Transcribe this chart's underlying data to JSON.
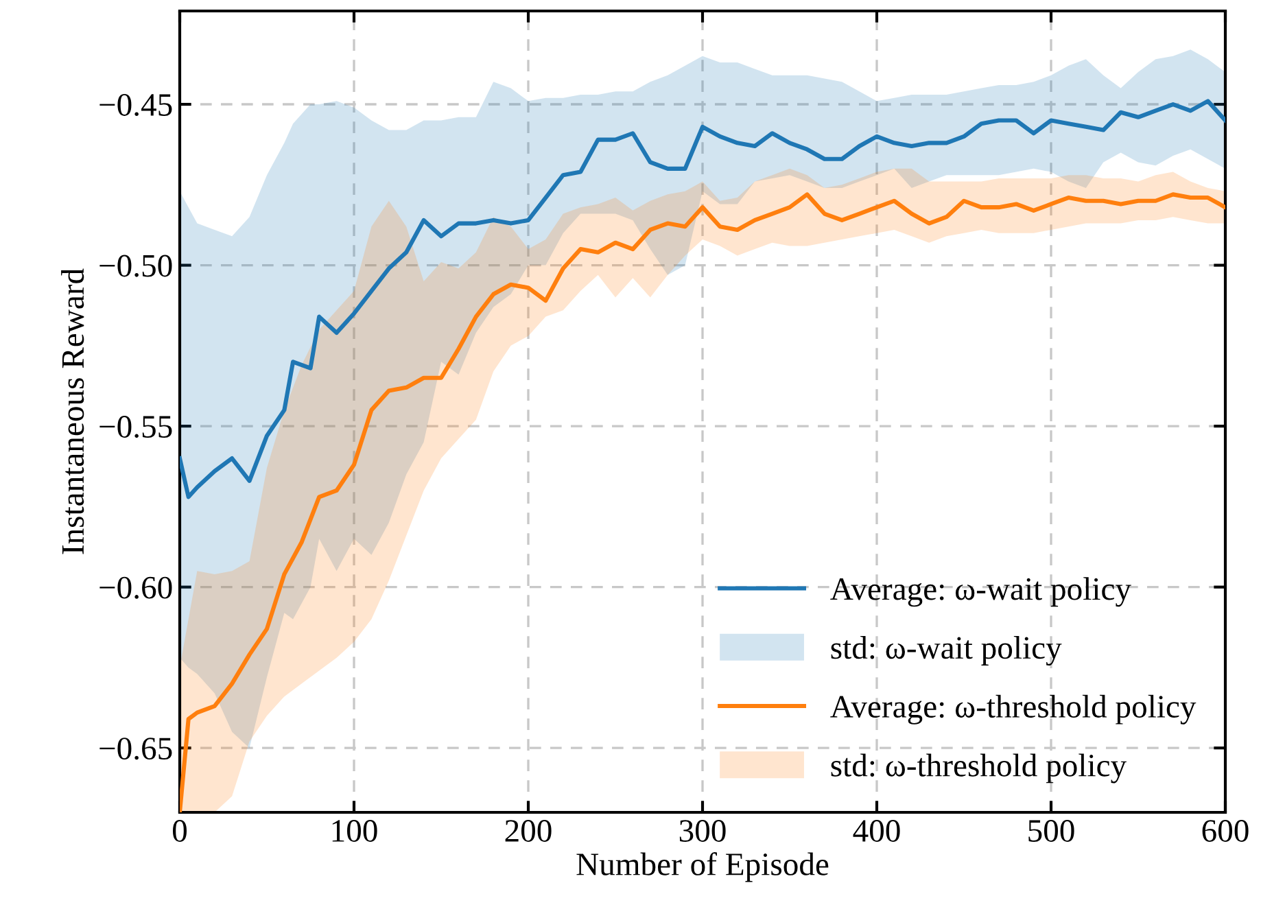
{
  "chart_data": {
    "type": "line",
    "xlabel": "Number of Episode",
    "ylabel": "Instantaneous Reward",
    "xlim": [
      0,
      600
    ],
    "xticks": [
      0,
      100,
      200,
      300,
      400,
      500,
      600
    ],
    "ylim": [
      -0.67,
      -0.421
    ],
    "yticks": [
      {
        "value": -0.65,
        "label": "−0.65"
      },
      {
        "value": -0.6,
        "label": "−0.60"
      },
      {
        "value": -0.55,
        "label": "−0.55"
      },
      {
        "value": -0.5,
        "label": "−0.50"
      },
      {
        "value": -0.45,
        "label": "−0.45"
      }
    ],
    "grid": true,
    "legend": "bottom right",
    "line_style": "solid",
    "marker": "none",
    "annotations": [
      "std: ω-wait policy",
      "std: ω-threshold policy"
    ],
    "series": [
      {
        "name": "Average: ω-wait policy",
        "color": "#1f77b4",
        "x": [
          0,
          5,
          10,
          20,
          30,
          40,
          50,
          60,
          65,
          75,
          80,
          90,
          100,
          110,
          120,
          130,
          140,
          150,
          160,
          170,
          180,
          190,
          200,
          210,
          220,
          230,
          240,
          250,
          260,
          270,
          280,
          290,
          300,
          310,
          320,
          330,
          340,
          350,
          360,
          370,
          380,
          390,
          400,
          410,
          420,
          430,
          440,
          450,
          460,
          470,
          480,
          490,
          500,
          510,
          520,
          530,
          540,
          550,
          560,
          570,
          580,
          590,
          600
        ],
        "values": [
          -0.56,
          -0.572,
          -0.569,
          -0.564,
          -0.56,
          -0.567,
          -0.553,
          -0.545,
          -0.53,
          -0.532,
          -0.516,
          -0.521,
          -0.515,
          -0.508,
          -0.501,
          -0.496,
          -0.486,
          -0.491,
          -0.487,
          -0.487,
          -0.486,
          -0.487,
          -0.486,
          -0.479,
          -0.472,
          -0.471,
          -0.461,
          -0.461,
          -0.459,
          -0.468,
          -0.47,
          -0.47,
          -0.457,
          -0.46,
          -0.462,
          -0.463,
          -0.459,
          -0.462,
          -0.464,
          -0.467,
          -0.467,
          -0.463,
          -0.46,
          -0.462,
          -0.463,
          -0.462,
          -0.462,
          -0.46,
          -0.456,
          -0.455,
          -0.455,
          -0.459,
          -0.455,
          -0.456,
          -0.457,
          -0.458,
          -0.4525,
          -0.454,
          -0.452,
          -0.45,
          -0.452,
          -0.449,
          -0.455
        ],
        "upper": [
          -0.477,
          -0.482,
          -0.487,
          -0.489,
          -0.491,
          -0.485,
          -0.472,
          -0.462,
          -0.456,
          -0.45,
          -0.45,
          -0.449,
          -0.451,
          -0.455,
          -0.458,
          -0.458,
          -0.455,
          -0.455,
          -0.454,
          -0.454,
          -0.443,
          -0.445,
          -0.449,
          -0.448,
          -0.448,
          -0.447,
          -0.447,
          -0.446,
          -0.446,
          -0.443,
          -0.441,
          -0.438,
          -0.435,
          -0.437,
          -0.437,
          -0.439,
          -0.441,
          -0.441,
          -0.441,
          -0.442,
          -0.443,
          -0.446,
          -0.449,
          -0.448,
          -0.447,
          -0.447,
          -0.447,
          -0.446,
          -0.445,
          -0.444,
          -0.444,
          -0.443,
          -0.441,
          -0.438,
          -0.436,
          -0.441,
          -0.445,
          -0.44,
          -0.436,
          -0.435,
          -0.433,
          -0.436,
          -0.44
        ],
        "lower": [
          -0.622,
          -0.625,
          -0.627,
          -0.633,
          -0.645,
          -0.65,
          -0.628,
          -0.608,
          -0.61,
          -0.6,
          -0.585,
          -0.595,
          -0.585,
          -0.59,
          -0.58,
          -0.565,
          -0.555,
          -0.53,
          -0.534,
          -0.521,
          -0.513,
          -0.509,
          -0.5,
          -0.5,
          -0.49,
          -0.484,
          -0.484,
          -0.484,
          -0.486,
          -0.495,
          -0.503,
          -0.5,
          -0.477,
          -0.481,
          -0.481,
          -0.474,
          -0.473,
          -0.472,
          -0.474,
          -0.476,
          -0.476,
          -0.474,
          -0.472,
          -0.47,
          -0.476,
          -0.474,
          -0.472,
          -0.472,
          -0.472,
          -0.472,
          -0.471,
          -0.47,
          -0.471,
          -0.474,
          -0.476,
          -0.468,
          -0.465,
          -0.468,
          -0.469,
          -0.466,
          -0.464,
          -0.467,
          -0.47
        ]
      },
      {
        "name": "Average: ω-threshold policy",
        "color": "#ff7f0e",
        "x": [
          0,
          5,
          10,
          20,
          30,
          40,
          50,
          60,
          70,
          80,
          90,
          100,
          110,
          120,
          130,
          140,
          150,
          160,
          170,
          180,
          190,
          200,
          210,
          220,
          230,
          240,
          250,
          260,
          270,
          280,
          290,
          300,
          310,
          320,
          330,
          340,
          350,
          360,
          370,
          380,
          390,
          400,
          410,
          420,
          430,
          440,
          450,
          460,
          470,
          480,
          490,
          500,
          510,
          520,
          530,
          540,
          550,
          560,
          570,
          580,
          590,
          600
        ],
        "values": [
          -0.67,
          -0.641,
          -0.639,
          -0.637,
          -0.63,
          -0.621,
          -0.613,
          -0.596,
          -0.586,
          -0.572,
          -0.57,
          -0.562,
          -0.545,
          -0.539,
          -0.538,
          -0.535,
          -0.535,
          -0.526,
          -0.516,
          -0.509,
          -0.506,
          -0.507,
          -0.511,
          -0.501,
          -0.495,
          -0.496,
          -0.493,
          -0.495,
          -0.489,
          -0.487,
          -0.488,
          -0.482,
          -0.488,
          -0.489,
          -0.486,
          -0.484,
          -0.482,
          -0.478,
          -0.484,
          -0.486,
          -0.484,
          -0.482,
          -0.48,
          -0.484,
          -0.487,
          -0.485,
          -0.48,
          -0.482,
          -0.482,
          -0.481,
          -0.483,
          -0.481,
          -0.479,
          -0.48,
          -0.48,
          -0.481,
          -0.48,
          -0.48,
          -0.478,
          -0.479,
          -0.479,
          -0.482
        ],
        "upper": [
          -0.625,
          -0.61,
          -0.595,
          -0.596,
          -0.595,
          -0.592,
          -0.563,
          -0.545,
          -0.531,
          -0.52,
          -0.514,
          -0.508,
          -0.488,
          -0.48,
          -0.488,
          -0.505,
          -0.499,
          -0.501,
          -0.496,
          -0.485,
          -0.488,
          -0.495,
          -0.492,
          -0.484,
          -0.482,
          -0.481,
          -0.479,
          -0.483,
          -0.48,
          -0.478,
          -0.477,
          -0.474,
          -0.48,
          -0.479,
          -0.474,
          -0.472,
          -0.47,
          -0.472,
          -0.476,
          -0.475,
          -0.473,
          -0.471,
          -0.47,
          -0.47,
          -0.474,
          -0.474,
          -0.474,
          -0.474,
          -0.473,
          -0.473,
          -0.473,
          -0.473,
          -0.472,
          -0.472,
          -0.473,
          -0.473,
          -0.474,
          -0.472,
          -0.471,
          -0.474,
          -0.476,
          -0.477
        ],
        "lower": [
          -0.67,
          -0.67,
          -0.67,
          -0.67,
          -0.665,
          -0.648,
          -0.64,
          -0.634,
          -0.63,
          -0.626,
          -0.622,
          -0.617,
          -0.61,
          -0.598,
          -0.584,
          -0.57,
          -0.56,
          -0.554,
          -0.548,
          -0.533,
          -0.525,
          -0.522,
          -0.516,
          -0.514,
          -0.508,
          -0.503,
          -0.51,
          -0.504,
          -0.51,
          -0.503,
          -0.497,
          -0.492,
          -0.494,
          -0.497,
          -0.495,
          -0.493,
          -0.494,
          -0.494,
          -0.493,
          -0.492,
          -0.491,
          -0.49,
          -0.489,
          -0.491,
          -0.493,
          -0.491,
          -0.49,
          -0.489,
          -0.49,
          -0.49,
          -0.49,
          -0.489,
          -0.488,
          -0.487,
          -0.487,
          -0.487,
          -0.486,
          -0.486,
          -0.485,
          -0.486,
          -0.487,
          -0.487
        ]
      }
    ]
  }
}
